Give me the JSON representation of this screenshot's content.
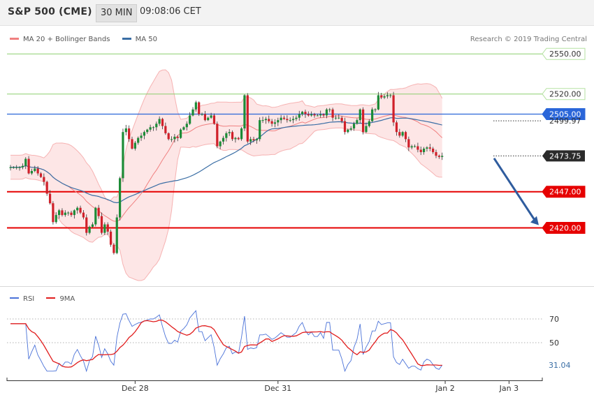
{
  "header": {
    "symbol": "S&P 500 (CME)",
    "interval": "30 MIN",
    "time": "09:08:06 CET"
  },
  "legend": [
    {
      "label": "MA 20 + Bollinger Bands",
      "color": "#f08080"
    },
    {
      "label": "MA 50",
      "color": "#3a6ea5"
    }
  ],
  "copyright": "Research © 2019 Trading Central",
  "rsi_legend": [
    {
      "label": "RSI",
      "color": "#4a72d8"
    },
    {
      "label": "9MA",
      "color": "#e11d1d"
    }
  ],
  "colors": {
    "bull": "#1c8c37",
    "bear": "#d0202a",
    "resistance": "#8ccf6e",
    "pivot": "#2a66d9",
    "support": "#e60000",
    "band_fill": "#fde3e3",
    "arrow": "#2f5c9e"
  },
  "chart_data": {
    "type": "candlestick",
    "price_range": [
      2395,
      2565
    ],
    "x_ticks": [
      {
        "label": "Dec 28",
        "index": 41
      },
      {
        "label": "Dec 31",
        "index": 88
      },
      {
        "label": "Jan 2",
        "index": 143
      },
      {
        "label": "Jan 3",
        "index": 164
      }
    ],
    "levels": [
      {
        "value": 2550.0,
        "label": "2550.00",
        "type": "resistance"
      },
      {
        "value": 2520.0,
        "label": "2520.00",
        "type": "resistance"
      },
      {
        "value": 2505.0,
        "label": "2505.00",
        "type": "pivot"
      },
      {
        "value": 2447.0,
        "label": "2447.00",
        "type": "support"
      },
      {
        "value": 2420.0,
        "label": "2420.00",
        "type": "support"
      }
    ],
    "price_labels": [
      {
        "value": 2499.97,
        "label": "2499.97"
      },
      {
        "value": 2473.75,
        "label": "2473.75"
      }
    ],
    "arrow": {
      "from_index": 164,
      "from_price": 2472,
      "to_index": 180,
      "to_price": 2422
    },
    "closes": [
      2465.3,
      2465.3,
      2465.3,
      2465.3,
      2466.3,
      2471.6,
      2460.7,
      2462.5,
      2464.3,
      2460.7,
      2458.0,
      2454.4,
      2445.5,
      2438.4,
      2424.3,
      2429.6,
      2433.1,
      2429.6,
      2431.4,
      2431.4,
      2429.6,
      2433.1,
      2435.0,
      2431.4,
      2427.8,
      2416.3,
      2420.8,
      2422.6,
      2435.0,
      2428.8,
      2416.3,
      2422.6,
      2417.2,
      2407.4,
      2401.2,
      2427.8,
      2457.1,
      2491.6,
      2494.3,
      2486.3,
      2479.2,
      2483.6,
      2487.2,
      2488.9,
      2491.6,
      2493.4,
      2495.2,
      2495.2,
      2497.8,
      2501.4,
      2496.1,
      2490.7,
      2486.3,
      2486.3,
      2488.1,
      2487.2,
      2493.4,
      2495.2,
      2497.8,
      2504.0,
      2508.5,
      2513.8,
      2505.0,
      2505.0,
      2500.5,
      2502.3,
      2504.0,
      2497.8,
      2481.0,
      2484.5,
      2487.2,
      2490.7,
      2491.6,
      2486.3,
      2487.2,
      2486.3,
      2494.3,
      2519.1,
      2484.5,
      2486.3,
      2485.4,
      2486.3,
      2500.5,
      2500.5,
      2501.4,
      2499.7,
      2497.8,
      2498.8,
      2500.5,
      2502.3,
      2501.4,
      2500.5,
      2500.5,
      2501.4,
      2502.3,
      2504.9,
      2506.7,
      2505.0,
      2504.0,
      2504.9,
      2504.0,
      2504.0,
      2504.9,
      2504.0,
      2508.5,
      2508.5,
      2502.3,
      2502.3,
      2502.3,
      2499.7,
      2491.6,
      2493.4,
      2494.3,
      2497.8,
      2500.5,
      2508.5,
      2491.6,
      2496.1,
      2499.7,
      2508.5,
      2508.5,
      2519.1,
      2517.4,
      2518.3,
      2519.1,
      2519.1,
      2498.8,
      2491.6,
      2488.9,
      2491.6,
      2486.3,
      2480.1,
      2481.0,
      2481.0,
      2478.4,
      2476.6,
      2479.2,
      2480.1,
      2479.2,
      2476.6,
      2473.9,
      2473.0,
      2473.8
    ],
    "indicators": [
      {
        "name": "MA 20 + Bollinger Bands"
      },
      {
        "name": "MA 50"
      }
    ],
    "rsi": {
      "ylim": [
        22,
        85
      ],
      "ticks": [
        {
          "value": 70,
          "label": "70"
        },
        {
          "value": 50,
          "label": "50"
        }
      ],
      "last_value": 31.04,
      "last_label": "31.04"
    }
  }
}
